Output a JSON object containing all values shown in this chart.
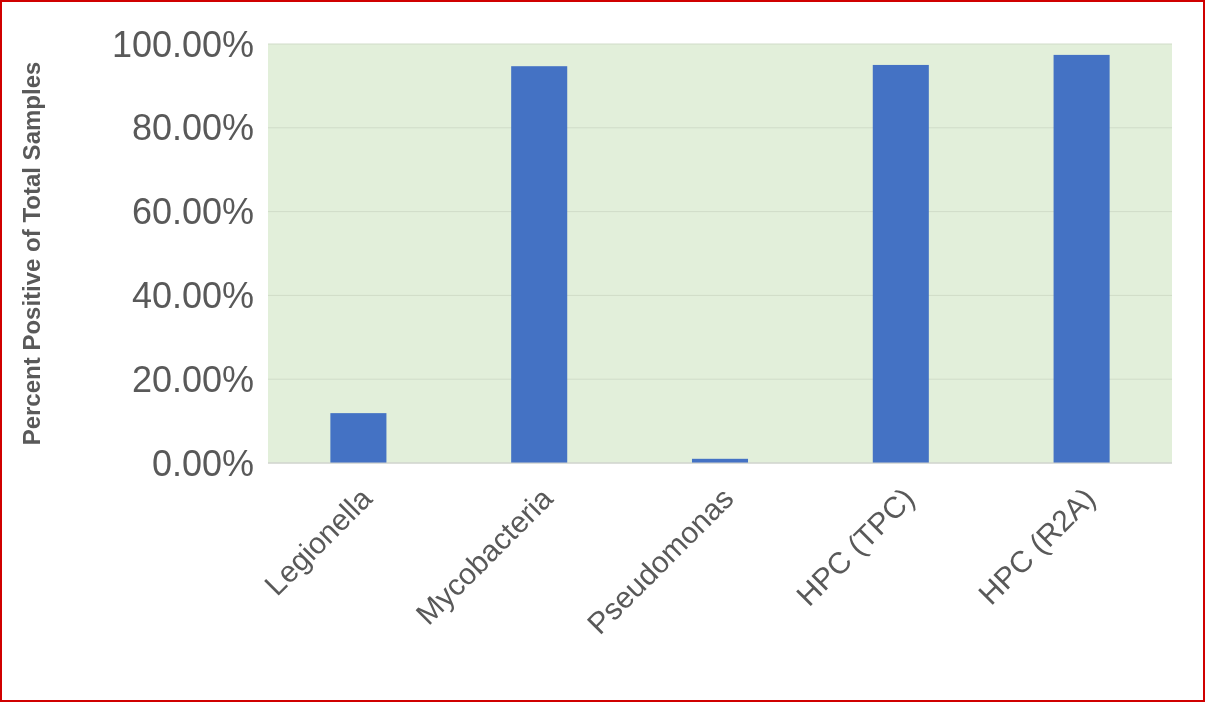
{
  "chart_data": {
    "type": "bar",
    "ylabel": "Percent Positive of Total Samples",
    "categories": [
      "Legionella",
      "Mycobacteria",
      "Pseudomonas",
      "HPC (TPC)",
      "HPC (R2A)"
    ],
    "values": [
      11.9,
      94.7,
      1.0,
      95.0,
      97.4
    ],
    "color": "#4472c4",
    "ylim": [
      0,
      100
    ],
    "yticks": [
      {
        "value": 0,
        "label": "0.00%"
      },
      {
        "value": 20,
        "label": "20.00%"
      },
      {
        "value": 40,
        "label": "40.00%"
      },
      {
        "value": 60,
        "label": "60.00%"
      },
      {
        "value": 80,
        "label": "80.00%"
      },
      {
        "value": 100,
        "label": "100.00%"
      }
    ],
    "grid": "y"
  }
}
